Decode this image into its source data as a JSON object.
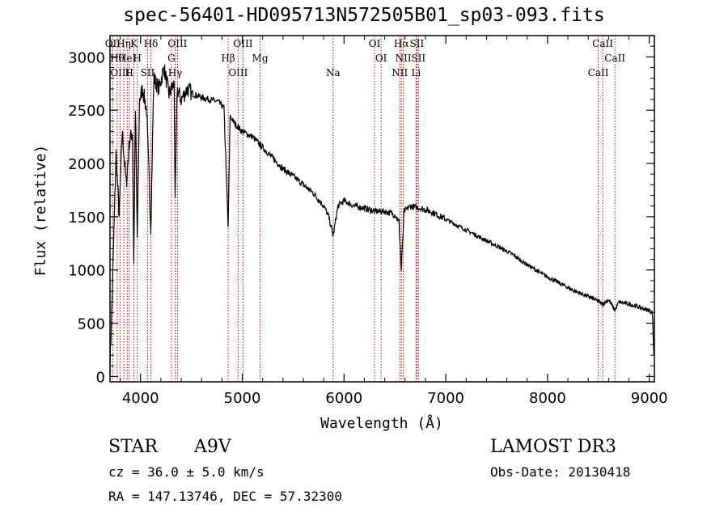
{
  "chart_data": {
    "type": "line",
    "title": "spec-56401-HD095713N572505B01_sp03-093.fits",
    "xlabel": "Wavelength (Å)",
    "ylabel": "Flux (relative)",
    "xlim": [
      3700,
      9050
    ],
    "ylim": [
      -50,
      3200
    ],
    "xticks": [
      4000,
      5000,
      6000,
      7000,
      8000,
      9000
    ],
    "yticks": [
      0,
      500,
      1000,
      1500,
      2000,
      2500,
      3000
    ],
    "series": [
      {
        "name": "spectrum",
        "x": [
          3700,
          3720,
          3740,
          3760,
          3790,
          3820,
          3860,
          3890,
          3920,
          3934,
          3950,
          3968,
          3990,
          4020,
          4060,
          4101,
          4130,
          4180,
          4230,
          4280,
          4330,
          4340,
          4360,
          4400,
          4460,
          4520,
          4600,
          4680,
          4760,
          4820,
          4861,
          4880,
          4920,
          5000,
          5100,
          5200,
          5300,
          5400,
          5500,
          5600,
          5700,
          5800,
          5850,
          5893,
          5940,
          6000,
          6100,
          6200,
          6300,
          6400,
          6500,
          6540,
          6563,
          6590,
          6650,
          6750,
          6850,
          6950,
          7050,
          7150,
          7250,
          7350,
          7450,
          7550,
          7650,
          7750,
          7850,
          7950,
          8050,
          8150,
          8250,
          8350,
          8450,
          8542,
          8600,
          8662,
          8700,
          8800,
          8900,
          9000,
          9030,
          9045
        ],
        "y": [
          100,
          700,
          1400,
          2100,
          1500,
          2300,
          1800,
          2200,
          2300,
          1050,
          2500,
          1300,
          2600,
          2700,
          2500,
          1400,
          2800,
          2700,
          2900,
          2650,
          2750,
          1600,
          2700,
          2600,
          2700,
          2650,
          2620,
          2600,
          2580,
          2520,
          1400,
          2450,
          2380,
          2300,
          2250,
          2150,
          2050,
          1950,
          1880,
          1800,
          1720,
          1600,
          1500,
          1320,
          1600,
          1650,
          1600,
          1580,
          1550,
          1550,
          1520,
          1450,
          1000,
          1550,
          1600,
          1580,
          1550,
          1500,
          1450,
          1400,
          1350,
          1300,
          1250,
          1200,
          1150,
          1080,
          1020,
          960,
          910,
          860,
          810,
          770,
          730,
          680,
          720,
          620,
          700,
          680,
          650,
          620,
          600,
          200
        ]
      }
    ],
    "lines": [
      {
        "x": 3727,
        "label": "OII"
      },
      {
        "x": 3771,
        "label": "Hθ"
      },
      {
        "x": 3798,
        "label": "OIII"
      },
      {
        "x": 3835,
        "label": "Hη"
      },
      {
        "x": 3869,
        "label": "HeI"
      },
      {
        "x": 3889,
        "label": "H"
      },
      {
        "x": 3934,
        "label": "K"
      },
      {
        "x": 3968,
        "label": "H"
      },
      {
        "x": 4069,
        "label": "SII"
      },
      {
        "x": 4102,
        "label": "Hδ"
      },
      {
        "x": 4304,
        "label": "G"
      },
      {
        "x": 4340,
        "label": "Hγ"
      },
      {
        "x": 4363,
        "label": "OIII"
      },
      {
        "x": 4861,
        "label": "Hβ"
      },
      {
        "x": 4959,
        "label": "OIII"
      },
      {
        "x": 5007,
        "label": "OIII"
      },
      {
        "x": 5175,
        "label": "Mg"
      },
      {
        "x": 5893,
        "label": "Na"
      },
      {
        "x": 6300,
        "label": "OI"
      },
      {
        "x": 6364,
        "label": "OI"
      },
      {
        "x": 6548,
        "label": "NII"
      },
      {
        "x": 6563,
        "label": "Hα"
      },
      {
        "x": 6583,
        "label": "NII"
      },
      {
        "x": 6708,
        "label": "Li"
      },
      {
        "x": 6716,
        "label": "SII"
      },
      {
        "x": 6731,
        "label": "SII"
      },
      {
        "x": 8498,
        "label": "CaII"
      },
      {
        "x": 8542,
        "label": "CaII"
      },
      {
        "x": 8662,
        "label": "CaII"
      }
    ]
  },
  "info": {
    "class": "STAR",
    "subclass": "A9V",
    "survey": "LAMOST DR3",
    "cz": "cz = 36.0 ± 5.0 km/s",
    "obs_date": "Obs-Date: 20130418",
    "coords": "RA = 147.13746, DEC =  57.32300"
  }
}
